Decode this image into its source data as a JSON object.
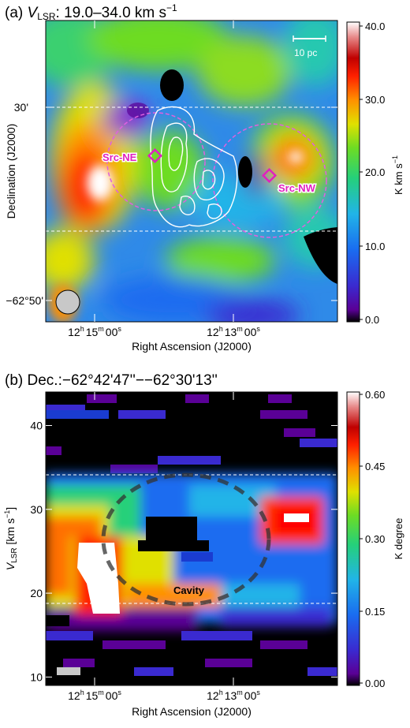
{
  "chart_data": [
    {
      "type": "heatmap",
      "panel_label": "(a)",
      "title_prefix": "V",
      "title_sub": "LSR",
      "title_rest": ": 19.0–34.0 km s",
      "title_sup": "−1",
      "xlabel": "Right Ascension (J2000)",
      "ylabel": "Declination (J2000)",
      "x_ticks": [
        {
          "h": "12",
          "hsup": "h",
          "m": "15",
          "msup": "m",
          "s": "00",
          "ssup": "s"
        },
        {
          "h": "12",
          "hsup": "h",
          "m": "13",
          "msup": "m",
          "s": "00",
          "ssup": "s"
        }
      ],
      "y_ticks": [
        "30'",
        "−62°50'"
      ],
      "colorbar": {
        "label": "K km s",
        "label_sup": "−1",
        "ticks": [
          "40.0",
          "30.0",
          "20.0",
          "10.0",
          "0.0"
        ],
        "range": [
          0,
          40
        ]
      },
      "scale_bar": "10 pc",
      "sources": [
        {
          "name": "Src-NE"
        },
        {
          "name": "Src-NW"
        }
      ],
      "beam": "circle"
    },
    {
      "type": "heatmap",
      "panel_label": "(b)",
      "title": "Dec.:−62°42'47''−−62°30'13''",
      "xlabel": "Right Ascension (J2000)",
      "ylabel_main": "V",
      "ylabel_sub": "LSR",
      "ylabel_rest": " [km s",
      "ylabel_sup": "−1",
      "ylabel_end": "]",
      "x_ticks": [
        {
          "h": "12",
          "hsup": "h",
          "m": "15",
          "msup": "m",
          "s": "00",
          "ssup": "s"
        },
        {
          "h": "12",
          "hsup": "h",
          "m": "13",
          "msup": "m",
          "s": "00",
          "ssup": "s"
        }
      ],
      "y_ticks": [
        40,
        30,
        20,
        10
      ],
      "ylim": [
        9,
        44
      ],
      "colorbar": {
        "label": "K degree",
        "ticks": [
          "0.60",
          "0.45",
          "0.30",
          "0.15",
          "0.00"
        ],
        "range": [
          0,
          0.6
        ]
      },
      "annotation": "Cavity",
      "velocity_range_lines": [
        19.0,
        34.0
      ]
    }
  ]
}
